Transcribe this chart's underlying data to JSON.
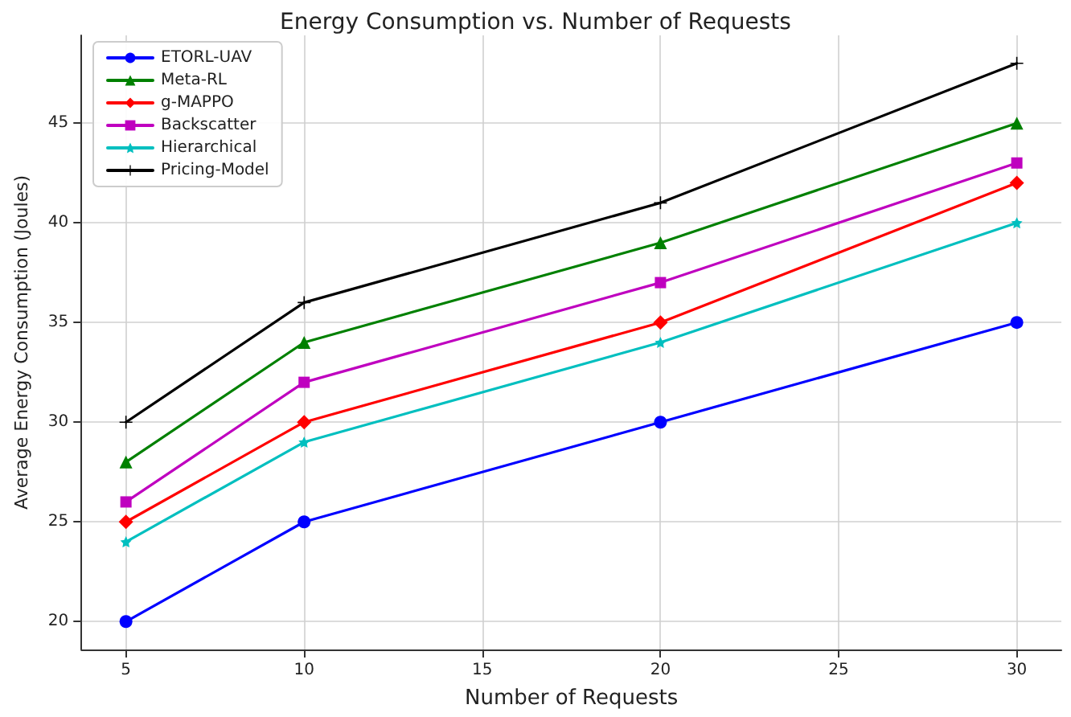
{
  "chart_data": {
    "type": "line",
    "title": "Energy Consumption vs. Number of Requests",
    "xlabel": "Number of Requests",
    "ylabel": "Average Energy Consumption (Joules)",
    "x": [
      5,
      10,
      20,
      30
    ],
    "series": [
      {
        "name": "ETORL-UAV",
        "color": "#0000ff",
        "marker": "circle",
        "values": [
          20,
          25,
          30,
          35
        ]
      },
      {
        "name": "Meta-RL",
        "color": "#008000",
        "marker": "triangle",
        "values": [
          28,
          34,
          39,
          45
        ]
      },
      {
        "name": "g-MAPPO",
        "color": "#ff0000",
        "marker": "diamond",
        "values": [
          25,
          30,
          35,
          42
        ]
      },
      {
        "name": "Backscatter",
        "color": "#bf00bf",
        "marker": "square",
        "values": [
          26,
          32,
          37,
          43
        ]
      },
      {
        "name": "Hierarchical",
        "color": "#00bfbf",
        "marker": "star",
        "values": [
          24,
          29,
          34,
          40
        ]
      },
      {
        "name": "Pricing-Model",
        "color": "#000000",
        "marker": "cross",
        "values": [
          30,
          36,
          41,
          48
        ]
      }
    ],
    "xlim": [
      3.75,
      31.25
    ],
    "xticks": [
      5,
      10,
      15,
      20,
      25,
      30
    ],
    "ylim": [
      18.6,
      49.4
    ],
    "yticks": [
      20,
      25,
      30,
      35,
      40,
      45
    ],
    "grid": true,
    "legend": "top left",
    "line_style": "solid"
  }
}
